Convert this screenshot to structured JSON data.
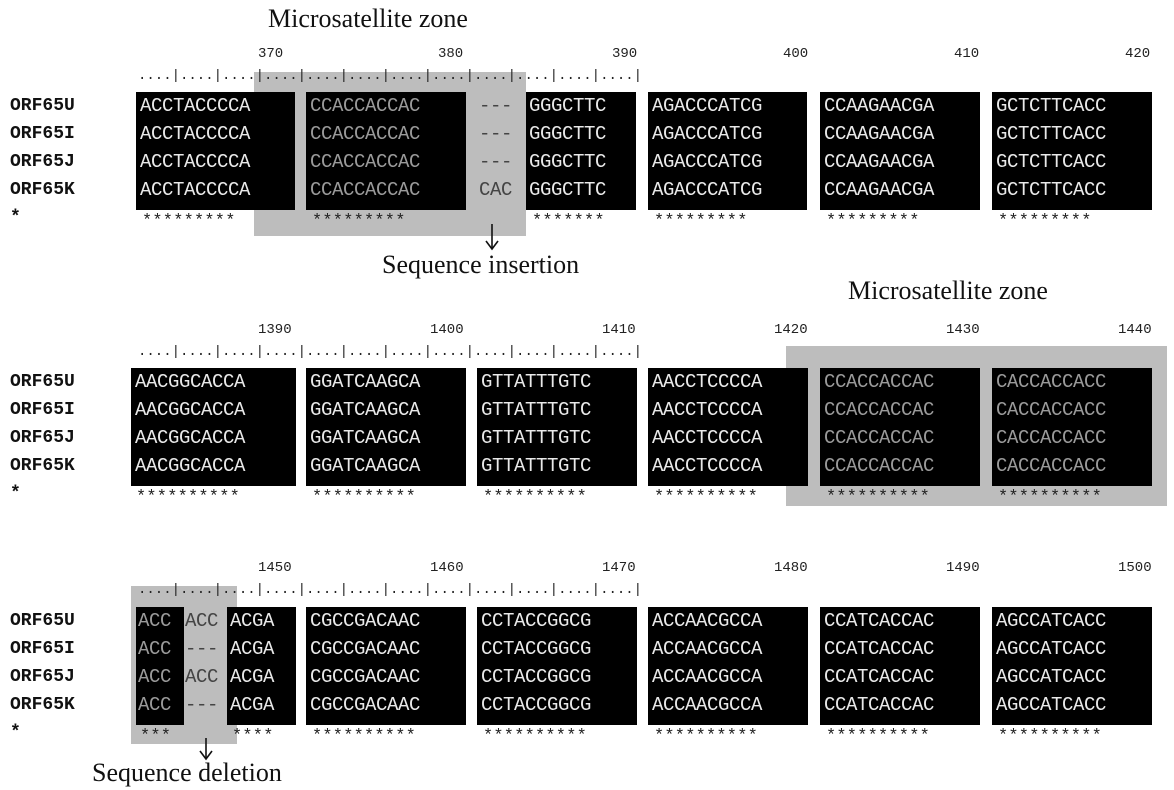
{
  "annotations": {
    "zone1": "Microsatellite zone",
    "insertion": "Sequence insertion",
    "zone2": "Microsatellite zone",
    "deletion": "Sequence deletion"
  },
  "labels": [
    "ORF65U",
    "ORF65I",
    "ORF65J",
    "ORF65K",
    "*"
  ],
  "panel1": {
    "ruler": [
      "370",
      "380",
      "390",
      "400",
      "410",
      "420"
    ],
    "rows": [
      [
        "ACCTACCCCA",
        "CCACCACCAC",
        "---",
        "GGGCTTC",
        "AGACCCATCG",
        "CCAAGAACGA",
        "GCTCTTCACC"
      ],
      [
        "ACCTACCCCA",
        "CCACCACCAC",
        "---",
        "GGGCTTC",
        "AGACCCATCG",
        "CCAAGAACGA",
        "GCTCTTCACC"
      ],
      [
        "ACCTACCCCA",
        "CCACCACCAC",
        "---",
        "GGGCTTC",
        "AGACCCATCG",
        "CCAAGAACGA",
        "GCTCTTCACC"
      ],
      [
        "ACCTACCCCA",
        "CCACCACCAC",
        "CAC",
        "GGGCTTC",
        "AGACCCATCG",
        "CCAAGAACGA",
        "GCTCTTCACC"
      ]
    ],
    "stars": [
      "*********",
      "*********",
      "",
      "*******",
      "*********",
      "*********",
      "*********"
    ]
  },
  "panel2": {
    "ruler": [
      "1390",
      "1400",
      "1410",
      "1420",
      "1430",
      "1440"
    ],
    "rows": [
      [
        "AACGGCACCA",
        "GGATCAAGCA",
        "GTTATTTGTC",
        "AACCTCCCCA",
        "CCACCACCAC",
        "CACCACCACC"
      ],
      [
        "AACGGCACCA",
        "GGATCAAGCA",
        "GTTATTTGTC",
        "AACCTCCCCA",
        "CCACCACCAC",
        "CACCACCACC"
      ],
      [
        "AACGGCACCA",
        "GGATCAAGCA",
        "GTTATTTGTC",
        "AACCTCCCCA",
        "CCACCACCAC",
        "CACCACCACC"
      ],
      [
        "AACGGCACCA",
        "GGATCAAGCA",
        "GTTATTTGTC",
        "AACCTCCCCA",
        "CCACCACCAC",
        "CACCACCACC"
      ]
    ],
    "stars": [
      "**********",
      "**********",
      "**********",
      "**********",
      "**********",
      "**********"
    ]
  },
  "panel3": {
    "ruler": [
      "1450",
      "1460",
      "1470",
      "1480",
      "1490",
      "1500"
    ],
    "rows": [
      [
        "ACC",
        "ACC",
        "ACGA",
        "CGCCGACAAC",
        "CCTACCGGCG",
        "ACCAACGCCA",
        "CCATCACCAC",
        "AGCCATCACC"
      ],
      [
        "ACC",
        "---",
        "ACGA",
        "CGCCGACAAC",
        "CCTACCGGCG",
        "ACCAACGCCA",
        "CCATCACCAC",
        "AGCCATCACC"
      ],
      [
        "ACC",
        "ACC",
        "ACGA",
        "CGCCGACAAC",
        "CCTACCGGCG",
        "ACCAACGCCA",
        "CCATCACCAC",
        "AGCCATCACC"
      ],
      [
        "ACC",
        "---",
        "ACGA",
        "CGCCGACAAC",
        "CCTACCGGCG",
        "ACCAACGCCA",
        "CCATCACCAC",
        "AGCCATCACC"
      ]
    ],
    "stars": [
      "***",
      "",
      "****",
      "**********",
      "**********",
      "**********",
      "**********",
      "**********"
    ]
  }
}
